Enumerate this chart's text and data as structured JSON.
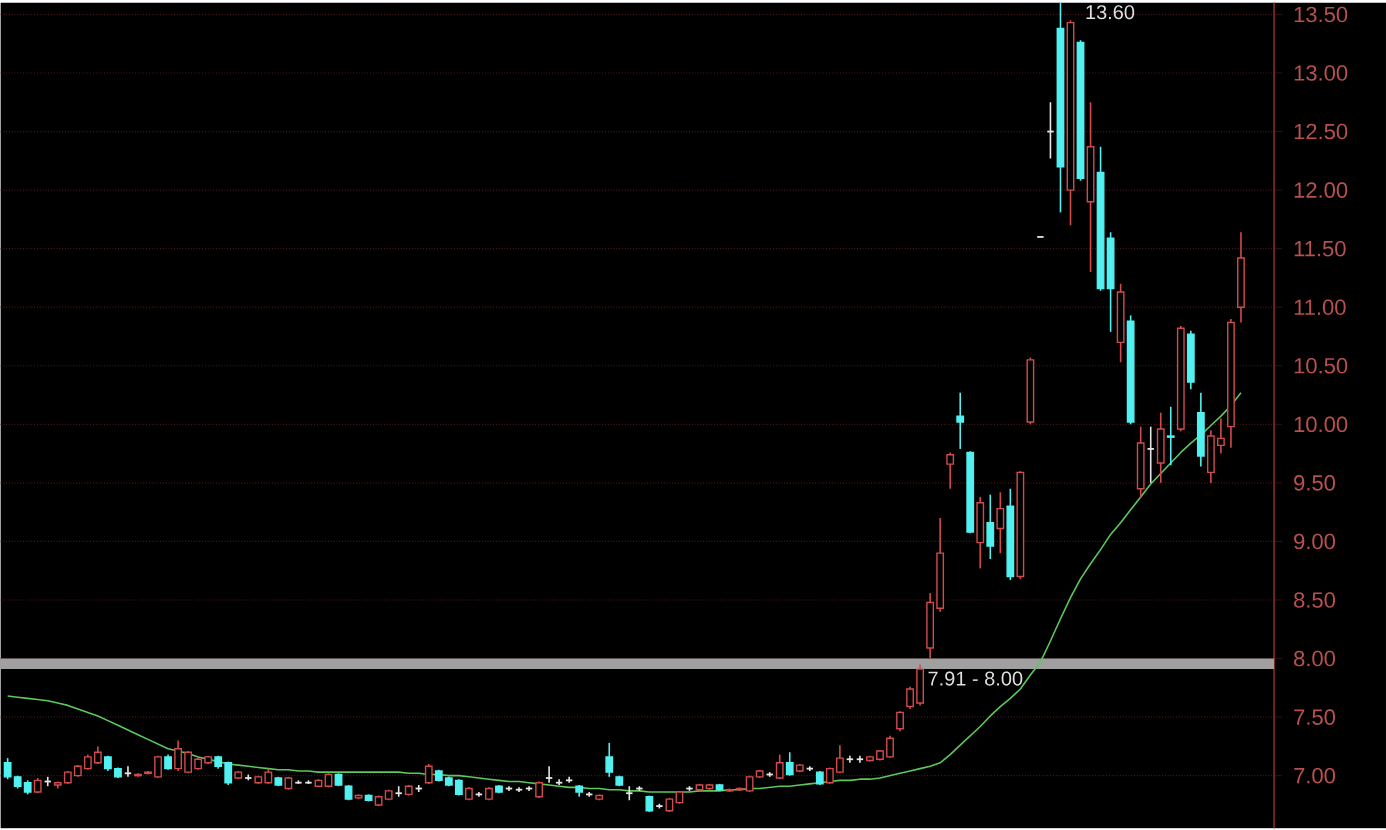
{
  "chart_data": {
    "type": "candlestick",
    "categories": [
      null,
      null,
      null,
      null,
      null,
      null,
      null,
      null,
      null,
      null,
      null,
      null,
      null,
      null,
      null,
      null,
      null,
      null,
      null,
      null,
      null,
      null,
      null,
      null,
      null,
      null,
      null,
      null,
      null,
      null,
      null,
      null,
      null,
      null,
      null,
      null,
      null,
      null,
      null,
      null,
      null,
      null,
      null,
      null,
      null,
      null,
      null,
      null,
      null,
      null,
      null,
      null,
      null,
      null,
      null,
      null,
      null,
      null,
      null,
      null,
      null,
      null,
      null,
      null,
      null,
      null,
      null,
      null,
      null,
      null,
      null,
      null,
      null,
      null,
      null,
      null,
      null,
      null,
      null,
      null,
      null,
      null,
      null,
      null,
      null,
      null,
      null,
      null,
      null,
      null,
      null,
      null,
      null,
      null,
      null,
      null,
      null,
      null,
      null,
      null,
      null,
      null,
      null,
      null,
      null,
      null,
      null,
      null,
      null,
      null,
      null,
      null,
      null,
      null,
      null,
      null,
      null,
      null,
      null,
      null,
      null,
      null,
      null,
      null
    ],
    "ohlc": [
      [
        7.11,
        7.15,
        6.97,
        6.99
      ],
      [
        6.99,
        7.0,
        6.89,
        6.91
      ],
      [
        6.94,
        6.96,
        6.84,
        6.86
      ],
      [
        6.86,
        6.98,
        6.85,
        6.96
      ],
      [
        6.95,
        6.99,
        6.91,
        6.95
      ],
      [
        6.92,
        6.95,
        6.89,
        6.94
      ],
      [
        6.94,
        7.04,
        6.93,
        7.03
      ],
      [
        7.0,
        7.09,
        6.99,
        7.08
      ],
      [
        7.06,
        7.18,
        7.05,
        7.16
      ],
      [
        7.11,
        7.25,
        7.1,
        7.2
      ],
      [
        7.16,
        7.17,
        7.04,
        7.06
      ],
      [
        7.06,
        7.07,
        6.98,
        6.99
      ],
      [
        7.02,
        7.08,
        6.99,
        7.02
      ],
      [
        7.0,
        7.02,
        6.99,
        7.01
      ],
      [
        7.02,
        7.04,
        7.01,
        7.03
      ],
      [
        6.99,
        7.17,
        6.98,
        7.16
      ],
      [
        7.16,
        7.18,
        7.05,
        7.06
      ],
      [
        7.06,
        7.3,
        7.04,
        7.23
      ],
      [
        7.03,
        7.21,
        7.02,
        7.2
      ],
      [
        7.06,
        7.15,
        7.05,
        7.14
      ],
      [
        7.11,
        7.17,
        7.1,
        7.16
      ],
      [
        7.16,
        7.17,
        7.06,
        7.08
      ],
      [
        7.11,
        7.12,
        6.92,
        6.94
      ],
      [
        6.98,
        7.04,
        6.97,
        7.03
      ],
      [
        6.98,
        7.01,
        6.96,
        6.98
      ],
      [
        6.94,
        7.0,
        6.93,
        6.99
      ],
      [
        6.94,
        7.06,
        6.93,
        7.03
      ],
      [
        6.98,
        6.99,
        6.91,
        6.92
      ],
      [
        6.89,
        6.99,
        6.88,
        6.98
      ],
      [
        6.94,
        6.96,
        6.93,
        6.94
      ],
      [
        6.94,
        6.96,
        6.93,
        6.94
      ],
      [
        6.91,
        6.97,
        6.9,
        6.96
      ],
      [
        6.91,
        7.02,
        6.9,
        7.01
      ],
      [
        7.01,
        7.02,
        6.91,
        6.92
      ],
      [
        6.91,
        6.92,
        6.79,
        6.8
      ],
      [
        6.81,
        6.84,
        6.8,
        6.83
      ],
      [
        6.83,
        6.84,
        6.78,
        6.79
      ],
      [
        6.75,
        6.83,
        6.74,
        6.82
      ],
      [
        6.8,
        6.88,
        6.79,
        6.87
      ],
      [
        6.85,
        6.91,
        6.82,
        6.85
      ],
      [
        6.84,
        6.92,
        6.83,
        6.91
      ],
      [
        6.89,
        6.92,
        6.86,
        6.89
      ],
      [
        6.94,
        7.1,
        6.93,
        7.08
      ],
      [
        7.04,
        7.05,
        6.95,
        6.96
      ],
      [
        6.98,
        6.99,
        6.91,
        6.92
      ],
      [
        6.96,
        6.97,
        6.83,
        6.84
      ],
      [
        6.8,
        6.9,
        6.79,
        6.89
      ],
      [
        6.84,
        6.86,
        6.82,
        6.84
      ],
      [
        6.8,
        6.9,
        6.79,
        6.89
      ],
      [
        6.91,
        6.92,
        6.85,
        6.86
      ],
      [
        6.89,
        6.91,
        6.87,
        6.89
      ],
      [
        6.88,
        6.9,
        6.86,
        6.88
      ],
      [
        6.89,
        6.91,
        6.87,
        6.89
      ],
      [
        6.82,
        6.95,
        6.81,
        6.94
      ],
      [
        6.98,
        7.08,
        6.94,
        6.98
      ],
      [
        6.94,
        6.97,
        6.92,
        6.94
      ],
      [
        6.96,
        6.99,
        6.94,
        6.96
      ],
      [
        6.91,
        6.92,
        6.82,
        6.86
      ],
      [
        6.84,
        6.86,
        6.82,
        6.84
      ],
      [
        6.8,
        6.84,
        6.79,
        6.83
      ],
      [
        7.16,
        7.28,
        6.99,
        7.03
      ],
      [
        6.99,
        7.0,
        6.91,
        6.92
      ],
      [
        6.85,
        6.91,
        6.79,
        6.85
      ],
      [
        6.89,
        6.91,
        6.87,
        6.89
      ],
      [
        6.82,
        6.83,
        6.69,
        6.7
      ],
      [
        6.74,
        6.76,
        6.72,
        6.74
      ],
      [
        6.7,
        6.81,
        6.69,
        6.8
      ],
      [
        6.77,
        6.87,
        6.76,
        6.86
      ],
      [
        6.89,
        6.91,
        6.87,
        6.89
      ],
      [
        6.88,
        6.93,
        6.87,
        6.92
      ],
      [
        6.89,
        6.93,
        6.88,
        6.92
      ],
      [
        6.92,
        6.93,
        6.87,
        6.88
      ],
      [
        6.87,
        6.89,
        6.86,
        6.88
      ],
      [
        6.88,
        6.9,
        6.87,
        6.89
      ],
      [
        6.87,
        7.0,
        6.86,
        6.99
      ],
      [
        6.99,
        7.05,
        6.98,
        7.04
      ],
      [
        7.01,
        7.03,
        6.99,
        7.01
      ],
      [
        6.98,
        7.18,
        6.97,
        7.11
      ],
      [
        7.11,
        7.2,
        7.0,
        7.01
      ],
      [
        7.04,
        7.1,
        7.03,
        7.09
      ],
      [
        7.06,
        7.08,
        7.04,
        7.06
      ],
      [
        7.03,
        7.04,
        6.92,
        6.93
      ],
      [
        6.94,
        7.07,
        6.93,
        7.06
      ],
      [
        7.03,
        7.26,
        7.02,
        7.15
      ],
      [
        7.14,
        7.17,
        7.11,
        7.14
      ],
      [
        7.14,
        7.17,
        7.11,
        7.14
      ],
      [
        7.13,
        7.17,
        7.12,
        7.16
      ],
      [
        7.14,
        7.22,
        7.13,
        7.21
      ],
      [
        7.16,
        7.34,
        7.15,
        7.32
      ],
      [
        7.4,
        7.55,
        7.38,
        7.54
      ],
      [
        7.59,
        7.76,
        7.57,
        7.74
      ],
      [
        7.62,
        7.95,
        7.6,
        7.91
      ],
      [
        8.09,
        8.56,
        8.0,
        8.48
      ],
      [
        8.43,
        9.2,
        8.4,
        8.9
      ],
      [
        9.66,
        9.76,
        9.45,
        9.74
      ],
      [
        10.07,
        10.27,
        9.79,
        10.02
      ],
      [
        9.76,
        9.77,
        9.07,
        9.08
      ],
      [
        8.99,
        9.38,
        8.77,
        9.33
      ],
      [
        9.16,
        9.4,
        8.85,
        8.96
      ],
      [
        9.11,
        9.42,
        8.9,
        9.28
      ],
      [
        9.3,
        9.45,
        8.67,
        8.7
      ],
      [
        8.7,
        9.6,
        8.68,
        9.59
      ],
      [
        10.02,
        10.57,
        10.0,
        10.55
      ],
      [
        11.6,
        11.6,
        11.6,
        11.6
      ],
      [
        12.5,
        12.75,
        12.27,
        12.5
      ],
      [
        13.38,
        13.6,
        11.81,
        12.2
      ],
      [
        12.0,
        13.45,
        11.7,
        13.43
      ],
      [
        13.26,
        13.28,
        12.08,
        12.1
      ],
      [
        11.9,
        12.75,
        11.3,
        12.37
      ],
      [
        12.15,
        12.37,
        11.14,
        11.16
      ],
      [
        11.59,
        11.64,
        10.79,
        11.16
      ],
      [
        10.7,
        11.2,
        10.53,
        11.13
      ],
      [
        10.88,
        10.93,
        10.0,
        10.02
      ],
      [
        9.45,
        9.98,
        9.37,
        9.84
      ],
      [
        9.79,
        9.98,
        9.5,
        9.79
      ],
      [
        9.67,
        10.1,
        9.5,
        9.96
      ],
      [
        9.9,
        10.15,
        9.65,
        9.89
      ],
      [
        9.96,
        10.84,
        9.94,
        10.82
      ],
      [
        10.77,
        10.8,
        10.3,
        10.36
      ],
      [
        10.1,
        10.27,
        9.64,
        9.73
      ],
      [
        9.59,
        9.95,
        9.5,
        9.9
      ],
      [
        9.82,
        10.05,
        9.75,
        9.88
      ],
      [
        9.98,
        10.9,
        9.8,
        10.87
      ],
      [
        11.0,
        11.64,
        10.87,
        11.42
      ]
    ],
    "colors": [
      "#52f0f0",
      "#52f0f0",
      "#52f0f0",
      "#d24b4b",
      "#e6e6e6",
      "#d24b4b",
      "#d24b4b",
      "#d24b4b",
      "#d24b4b",
      "#d24b4b",
      "#52f0f0",
      "#52f0f0",
      "#e6e6e6",
      "#d24b4b",
      "#d24b4b",
      "#d24b4b",
      "#52f0f0",
      "#d24b4b",
      "#d24b4b",
      "#d24b4b",
      "#d24b4b",
      "#52f0f0",
      "#52f0f0",
      "#d24b4b",
      "#e6e6e6",
      "#d24b4b",
      "#d24b4b",
      "#52f0f0",
      "#d24b4b",
      "#e6e6e6",
      "#e6e6e6",
      "#d24b4b",
      "#d24b4b",
      "#52f0f0",
      "#52f0f0",
      "#d24b4b",
      "#52f0f0",
      "#d24b4b",
      "#d24b4b",
      "#e6e6e6",
      "#d24b4b",
      "#e6e6e6",
      "#d24b4b",
      "#52f0f0",
      "#52f0f0",
      "#52f0f0",
      "#d24b4b",
      "#e6e6e6",
      "#d24b4b",
      "#52f0f0",
      "#e6e6e6",
      "#e6e6e6",
      "#e6e6e6",
      "#d24b4b",
      "#e6e6e6",
      "#e6e6e6",
      "#e6e6e6",
      "#52f0f0",
      "#e6e6e6",
      "#d24b4b",
      "#52f0f0",
      "#52f0f0",
      "#e6e6e6",
      "#e6e6e6",
      "#52f0f0",
      "#e6e6e6",
      "#d24b4b",
      "#d24b4b",
      "#e6e6e6",
      "#d24b4b",
      "#d24b4b",
      "#52f0f0",
      "#d24b4b",
      "#d24b4b",
      "#d24b4b",
      "#d24b4b",
      "#e6e6e6",
      "#d24b4b",
      "#52f0f0",
      "#d24b4b",
      "#e6e6e6",
      "#52f0f0",
      "#d24b4b",
      "#d24b4b",
      "#e6e6e6",
      "#e6e6e6",
      "#d24b4b",
      "#d24b4b",
      "#d24b4b",
      "#d24b4b",
      "#d24b4b",
      "#d24b4b",
      "#d24b4b",
      "#d24b4b",
      "#d24b4b",
      "#52f0f0",
      "#52f0f0",
      "#d24b4b",
      "#52f0f0",
      "#d24b4b",
      "#52f0f0",
      "#d24b4b",
      "#d24b4b",
      "#e6e6e6",
      "#e6e6e6",
      "#52f0f0",
      "#d24b4b",
      "#52f0f0",
      "#d24b4b",
      "#52f0f0",
      "#52f0f0",
      "#d24b4b",
      "#52f0f0",
      "#d24b4b",
      "#e6e6e6",
      "#d24b4b",
      "#52f0f0",
      "#d24b4b",
      "#52f0f0",
      "#52f0f0",
      "#d24b4b",
      "#d24b4b",
      "#d24b4b",
      "#d24b4b"
    ],
    "series": [
      {
        "type": "line",
        "color": "#5cc85c",
        "values": [
          7.68,
          7.67,
          7.66,
          7.65,
          7.64,
          7.62,
          7.6,
          7.57,
          7.54,
          7.51,
          7.47,
          7.43,
          7.39,
          7.35,
          7.31,
          7.27,
          7.23,
          7.21,
          7.19,
          7.16,
          7.14,
          7.12,
          7.1,
          7.09,
          7.08,
          7.07,
          7.06,
          7.05,
          7.05,
          7.04,
          7.04,
          7.03,
          7.03,
          7.03,
          7.03,
          7.03,
          7.03,
          7.03,
          7.03,
          7.03,
          7.02,
          7.02,
          7.01,
          7.01,
          7.0,
          7.0,
          6.99,
          6.98,
          6.97,
          6.96,
          6.95,
          6.95,
          6.94,
          6.93,
          6.92,
          6.91,
          6.9,
          6.9,
          6.89,
          6.89,
          6.88,
          6.88,
          6.87,
          6.87,
          6.86,
          6.86,
          6.86,
          6.86,
          6.86,
          6.87,
          6.87,
          6.87,
          6.88,
          6.88,
          6.89,
          6.89,
          6.9,
          6.91,
          6.91,
          6.92,
          6.93,
          6.94,
          6.95,
          6.96,
          6.96,
          6.97,
          6.97,
          6.98,
          7.0,
          7.02,
          7.04,
          7.06,
          7.08,
          7.11,
          7.18,
          7.26,
          7.34,
          7.42,
          7.51,
          7.59,
          7.66,
          7.74,
          7.86,
          7.97,
          8.15,
          8.34,
          8.52,
          8.68,
          8.81,
          8.93,
          9.06,
          9.16,
          9.27,
          9.38,
          9.49,
          9.58,
          9.67,
          9.76,
          9.84,
          9.91,
          9.99,
          10.07,
          10.16,
          10.27
        ]
      }
    ],
    "ylim": [
      6.55,
      13.6
    ],
    "yticks": [
      {
        "value": 7.0,
        "label": "7.00"
      },
      {
        "value": 7.5,
        "label": "7.50"
      },
      {
        "value": 8.0,
        "label": "8.00"
      },
      {
        "value": 8.5,
        "label": "8.50"
      },
      {
        "value": 9.0,
        "label": "9.00"
      },
      {
        "value": 9.5,
        "label": "9.50"
      },
      {
        "value": 10.0,
        "label": "10.00"
      },
      {
        "value": 10.5,
        "label": "10.50"
      },
      {
        "value": 11.0,
        "label": "11.00"
      },
      {
        "value": 11.5,
        "label": "11.50"
      },
      {
        "value": 12.0,
        "label": "12.00"
      },
      {
        "value": 12.5,
        "label": "12.50"
      },
      {
        "value": 13.0,
        "label": "13.00"
      },
      {
        "value": 13.5,
        "label": "13.50"
      }
    ],
    "grid": "y",
    "tick_labels": "y",
    "bands": [
      {
        "axis": "y",
        "from": 7.91,
        "to": 8.0,
        "label": "7.91 - 8.00",
        "color": "#a0a0a0"
      }
    ],
    "annotations": [
      "13.60"
    ]
  }
}
